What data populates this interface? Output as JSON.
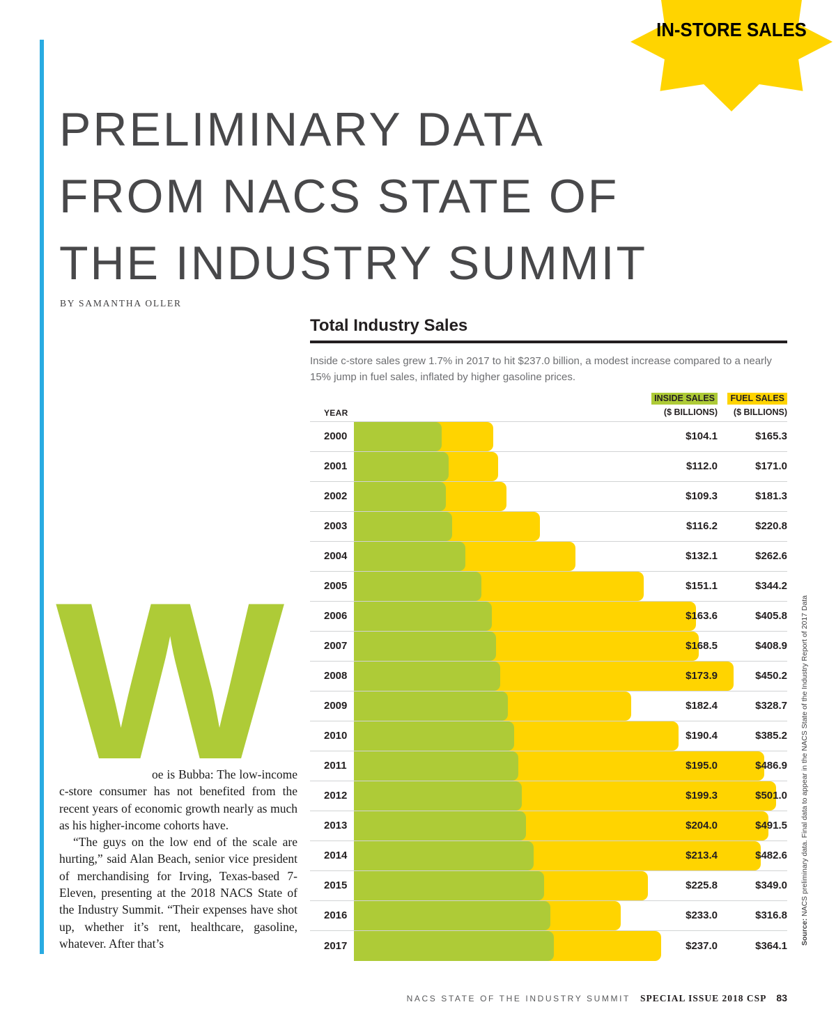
{
  "badge": {
    "label": "IN-STORE SALES"
  },
  "header": {
    "title_lines": [
      "PRELIMINARY DATA",
      "FROM NACS STATE OF",
      "THE INDUSTRY SUMMIT"
    ],
    "byline": "BY SAMANTHA OLLER"
  },
  "article": {
    "dropcap": "W",
    "paragraph1": "oe is Bubba: The low-income c-store consumer has not benefited from the recent years of economic growth nearly as much as his higher-income cohorts have.",
    "paragraph2": "“The guys on the low end of the scale are hurting,” said Alan Beach, senior vice president of merchandising for Irving, Texas-based 7-Eleven, presenting at the 2018 NACS State of the Industry Summit. “Their expenses have shot up, whether it’s rent, healthcare, gasoline, whatever. After that’s"
  },
  "chart": {
    "title": "Total Industry Sales",
    "description": "Inside c-store sales grew 1.7% in 2017 to hit $237.0 billion, a modest increase compared to a nearly 15% jump in fuel sales, inflated by higher gasoline prices.",
    "columns": {
      "year": "YEAR",
      "inside": "INSIDE SALES",
      "fuel": "FUEL SALES",
      "unit": "($ BILLIONS)"
    },
    "source_label": "Source:",
    "source_text": " NACS preliminary data. Final data to appear in the NACS State of the Industry Report of 2017 Data",
    "colors": {
      "inside": "#aecb37",
      "fuel": "#ffd400",
      "accent_blue": "#29abe2"
    }
  },
  "chart_data": {
    "type": "bar",
    "orientation": "horizontal",
    "title": "Total Industry Sales",
    "categories": [
      "2000",
      "2001",
      "2002",
      "2003",
      "2004",
      "2005",
      "2006",
      "2007",
      "2008",
      "2009",
      "2010",
      "2011",
      "2012",
      "2013",
      "2014",
      "2015",
      "2016",
      "2017"
    ],
    "series": [
      {
        "name": "INSIDE SALES ($ BILLIONS)",
        "values": [
          104.1,
          112.0,
          109.3,
          116.2,
          132.1,
          151.1,
          163.6,
          168.5,
          173.9,
          182.4,
          190.4,
          195.0,
          199.3,
          204.0,
          213.4,
          225.8,
          233.0,
          237.0
        ]
      },
      {
        "name": "FUEL SALES ($ BILLIONS)",
        "values": [
          165.3,
          171.0,
          181.3,
          220.8,
          262.6,
          344.2,
          405.8,
          408.9,
          450.2,
          328.7,
          385.2,
          486.9,
          501.0,
          491.5,
          482.6,
          349.0,
          316.8,
          364.1
        ]
      }
    ],
    "value_prefix": "$",
    "legend_position": "top-right-of-table",
    "grid": "row-separators"
  },
  "footer": {
    "left": "NACS STATE OF THE INDUSTRY SUMMIT",
    "issue": "SPECIAL ISSUE 2018 CSP",
    "page_number": "83"
  }
}
